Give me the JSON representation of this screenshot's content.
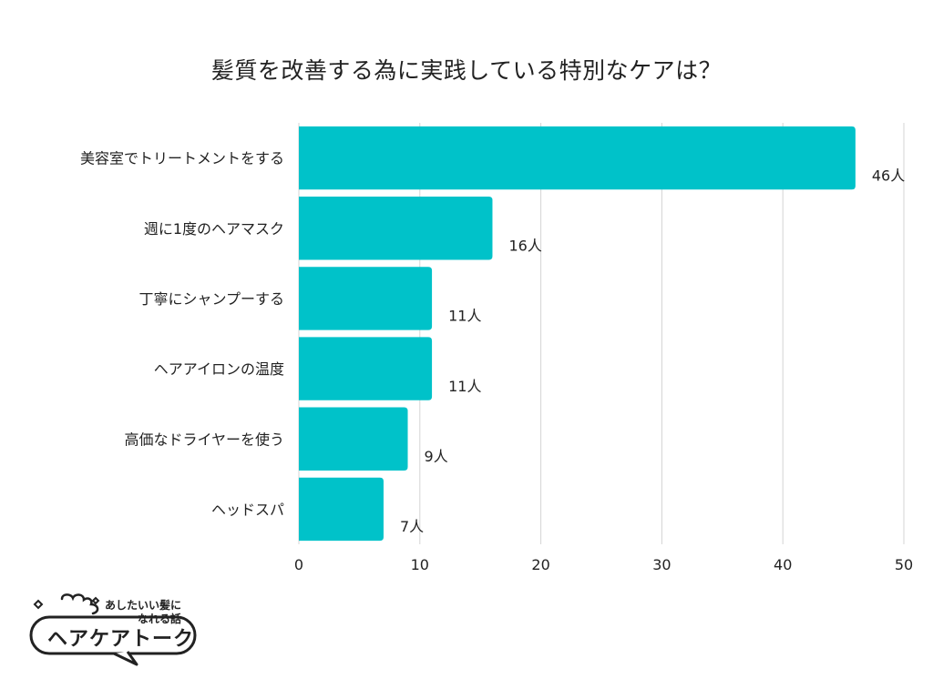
{
  "chart_data": {
    "type": "bar",
    "orientation": "horizontal",
    "title": "髪質を改善する為に実践している特別なケアは？",
    "categories": [
      "美容室でトリートメントをする",
      "週に1度のヘアマスク",
      "丁寧にシャンプーする",
      "ヘアアイロンの温度",
      "高価なドライヤーを使う",
      "ヘッドスパ"
    ],
    "values": [
      46,
      16,
      11,
      11,
      9,
      7
    ],
    "value_labels": [
      "46人",
      "16人",
      "11人",
      "11人",
      "9人",
      "7人"
    ],
    "xlim": [
      0,
      50
    ],
    "ticks": [
      0,
      10,
      20,
      30,
      40,
      50
    ],
    "grid": true,
    "bar_color": "#00c2c9",
    "xlabel": "",
    "ylabel": ""
  },
  "logo": {
    "tagline": "あしたいい髪に\nなれる話",
    "name": "ヘアケアトーク"
  }
}
